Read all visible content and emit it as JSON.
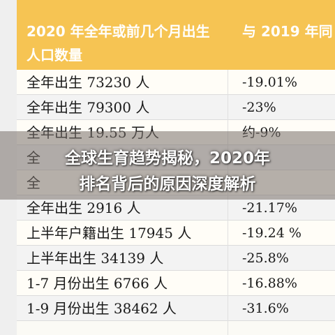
{
  "header": {
    "left_line1": "2020 年全年或前几个月出生",
    "left_line2": "人口数量",
    "right": "与 2019 年同"
  },
  "rows": [
    {
      "birth": "全年出生 73230 人",
      "change": "-19.01%"
    },
    {
      "birth": "全年出生 79300 人",
      "change": "-23%"
    },
    {
      "birth": "全年出生 19.55 万人",
      "change": "约-9%"
    },
    {
      "birth": "全",
      "change": ""
    },
    {
      "birth": "全",
      "change": ""
    },
    {
      "birth": "全年出生 2916 人",
      "change": "-21.17%"
    },
    {
      "birth": "上半年户籍出生 17945 人",
      "change": "-19.24 %"
    },
    {
      "birth": "上半年出生 34139 人",
      "change": "-25.8%"
    },
    {
      "birth": "1-7 月份出生 6766 人",
      "change": "-16.88%"
    },
    {
      "birth": "1-9 月份出生 38462 人",
      "change": "-31.6%"
    }
  ],
  "caption": {
    "line1": "全球生育趋势揭秘，2020年",
    "line2": "排名背后的原因深度解析"
  },
  "colors": {
    "header_bg": "#f6c453",
    "overlay": "#78706980"
  }
}
